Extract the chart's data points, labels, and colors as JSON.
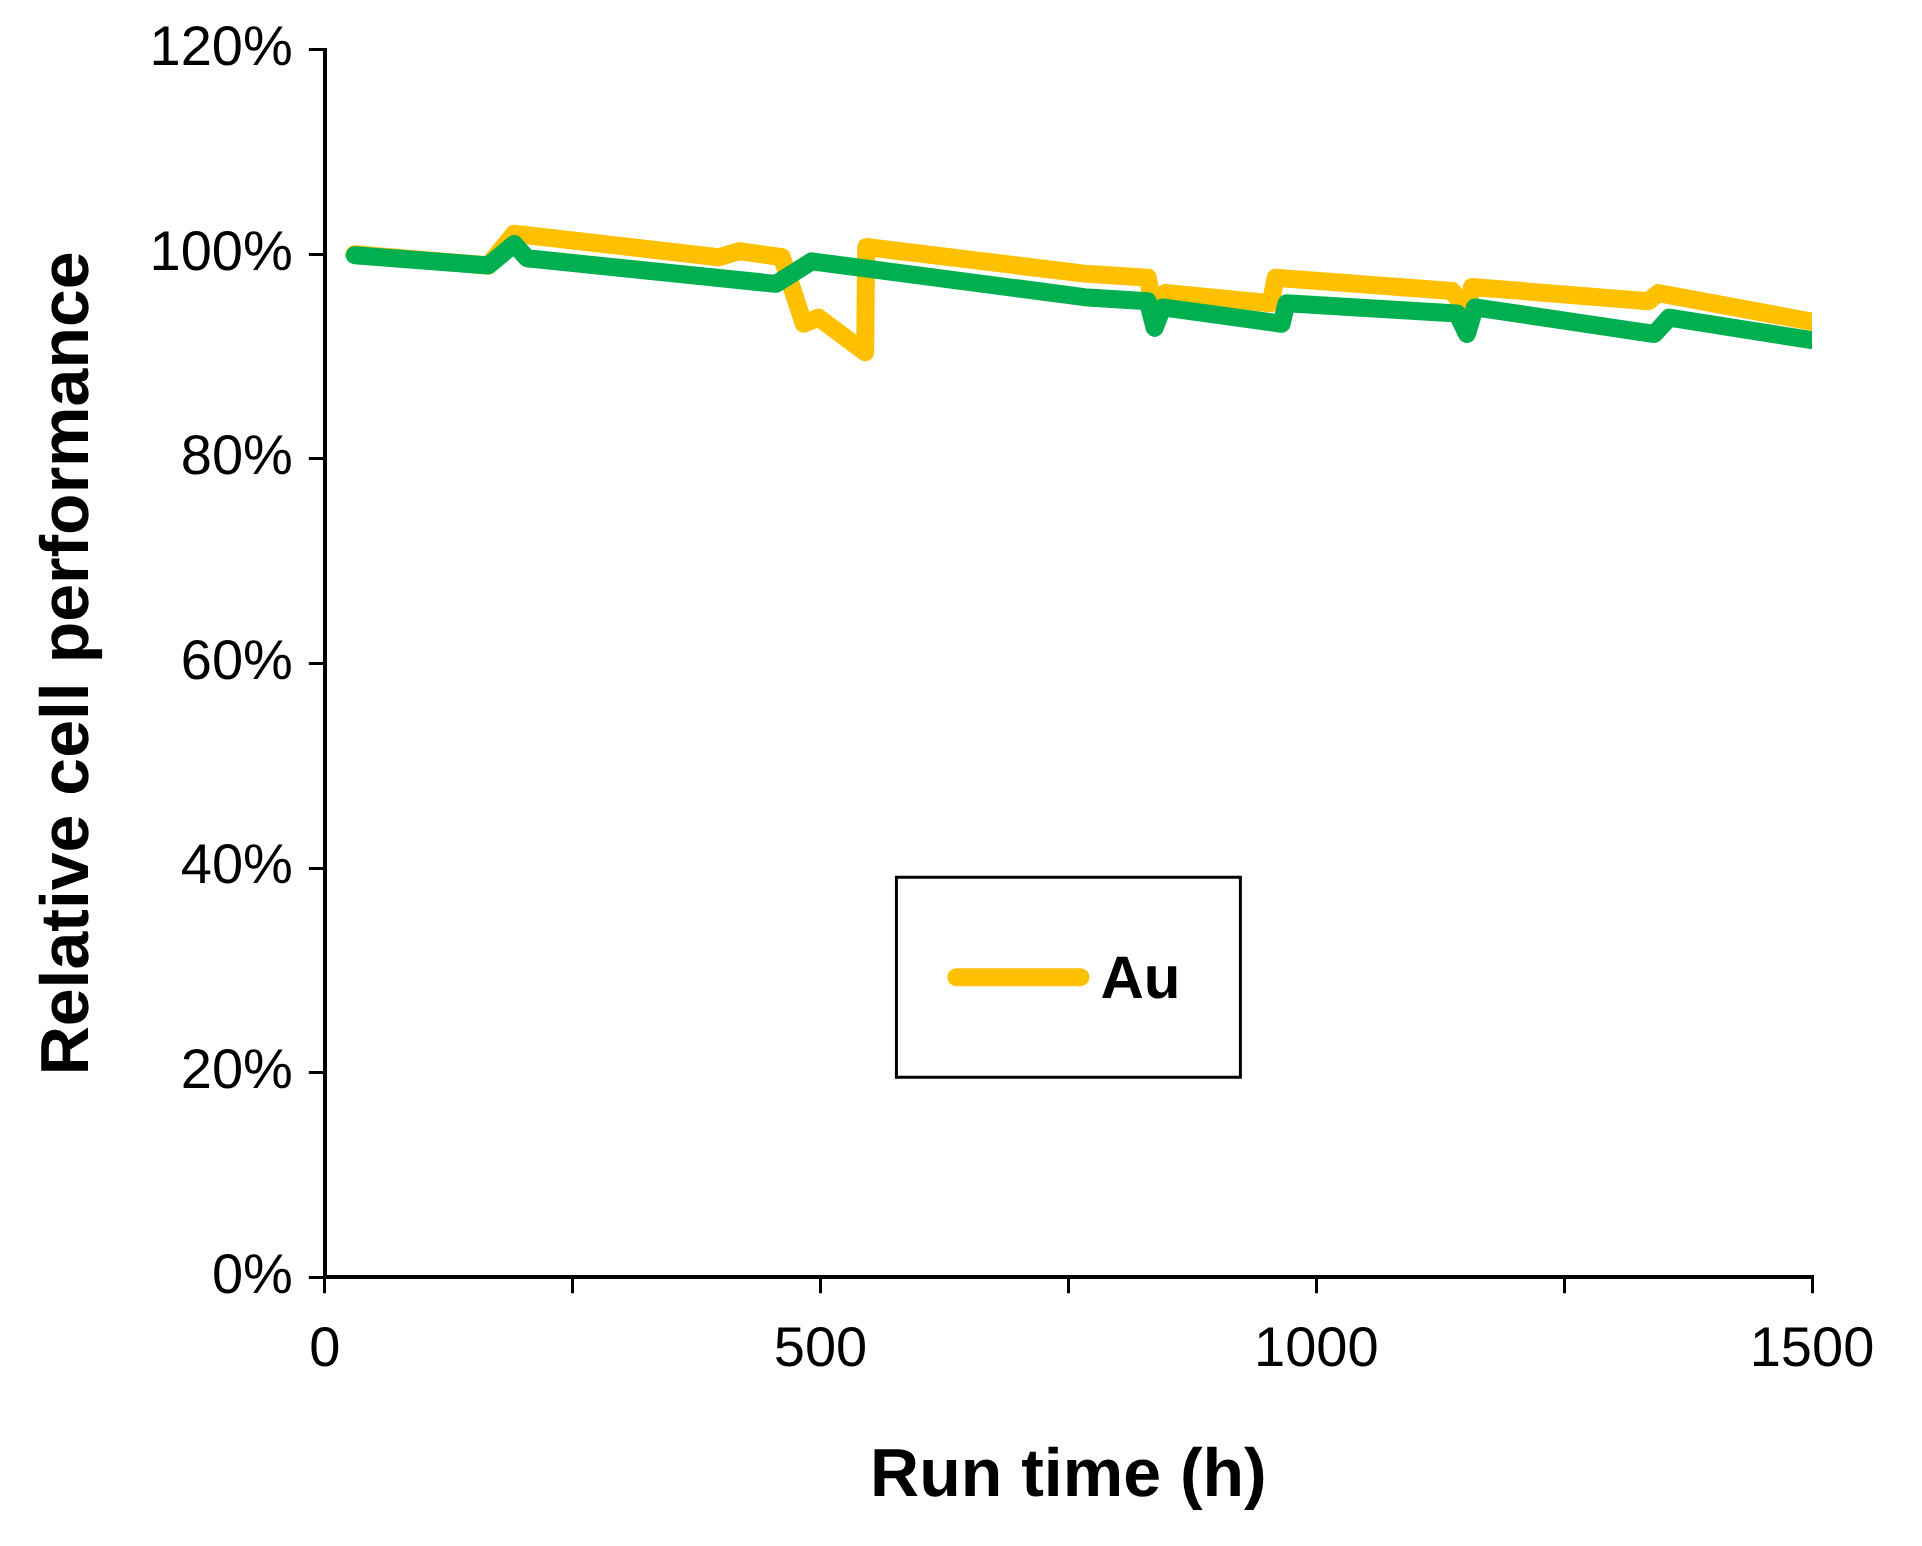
{
  "chart_data": {
    "type": "line",
    "xlabel": "Run time (h)",
    "ylabel": "Relative cell performance",
    "xlim": [
      0,
      1500
    ],
    "ylim": [
      0,
      120
    ],
    "xticks": [
      0,
      {
        "value": 250,
        "label": null
      },
      500,
      {
        "value": 750,
        "label": null
      },
      1000,
      {
        "value": 1250,
        "label": null
      },
      1500
    ],
    "yticks": [
      {
        "value": 0,
        "label": "0%"
      },
      {
        "value": 20,
        "label": "20%"
      },
      {
        "value": 40,
        "label": "40%"
      },
      {
        "value": 60,
        "label": "60%"
      },
      {
        "value": 80,
        "label": "80%"
      },
      {
        "value": 100,
        "label": "100%"
      },
      {
        "value": 120,
        "label": "120%"
      }
    ],
    "grid": false,
    "legend": "bottom",
    "marker": "none",
    "line_style": "solid",
    "series": [
      {
        "color": "#00b050",
        "x": [
          30,
          165,
          191,
          204,
          455,
          491,
          766,
          830,
          837,
          845,
          965,
          970,
          1142,
          1152,
          1160,
          1341,
          1356,
          1500
        ],
        "values": [
          99.9,
          98.9,
          101,
          99.6,
          97.1,
          99.3,
          95.8,
          95.4,
          92.8,
          94.8,
          93.2,
          95.2,
          94.2,
          92.2,
          94.8,
          92.2,
          93.8,
          91.6
        ]
      },
      {
        "name": "Au",
        "color": "#ffc000",
        "x": [
          30,
          165,
          191,
          397,
          418,
          461,
          483,
          498,
          545,
          546,
          766,
          830,
          837,
          848,
          954,
          959,
          1137,
          1152,
          1157,
          1335,
          1345,
          1500
        ],
        "values": [
          100,
          98.9,
          102,
          99.7,
          100.3,
          99.7,
          93.2,
          93.8,
          90.4,
          100.7,
          98.1,
          97.7,
          94.2,
          96.2,
          95.2,
          97.7,
          96.4,
          94.4,
          96.8,
          95.4,
          96.2,
          93.4
        ]
      }
    ]
  }
}
